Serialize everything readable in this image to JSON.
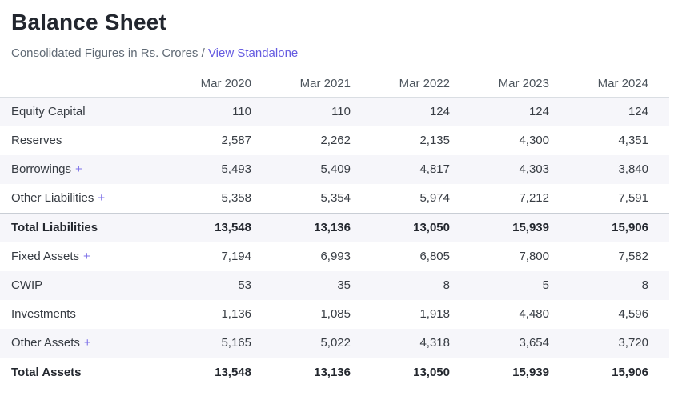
{
  "page": {
    "title": "Balance Sheet",
    "subtitle": "Consolidated Figures in Rs. Crores /",
    "standalone_link": "View Standalone"
  },
  "icons": {
    "expand": "+"
  },
  "colors": {
    "accent": "#655be1",
    "plus_icon": "#7d71e8",
    "row_stripe": "#f6f6fa",
    "header_border": "#dadee3",
    "total_border": "#c9ced5"
  },
  "table": {
    "row_label_header": "",
    "columns": [
      "Mar 2020",
      "Mar 2021",
      "Mar 2022",
      "Mar 2023",
      "Mar 2024"
    ],
    "rows": [
      {
        "label": "Equity Capital",
        "expandable": false,
        "bold": false,
        "values": [
          "110",
          "110",
          "124",
          "124",
          "124"
        ]
      },
      {
        "label": "Reserves",
        "expandable": false,
        "bold": false,
        "values": [
          "2,587",
          "2,262",
          "2,135",
          "4,300",
          "4,351"
        ]
      },
      {
        "label": "Borrowings",
        "expandable": true,
        "bold": false,
        "values": [
          "5,493",
          "5,409",
          "4,817",
          "4,303",
          "3,840"
        ]
      },
      {
        "label": "Other Liabilities",
        "expandable": true,
        "bold": false,
        "values": [
          "5,358",
          "5,354",
          "5,974",
          "7,212",
          "7,591"
        ]
      },
      {
        "label": "Total Liabilities",
        "expandable": false,
        "bold": true,
        "values": [
          "13,548",
          "13,136",
          "13,050",
          "15,939",
          "15,906"
        ]
      },
      {
        "label": "Fixed Assets",
        "expandable": true,
        "bold": false,
        "values": [
          "7,194",
          "6,993",
          "6,805",
          "7,800",
          "7,582"
        ]
      },
      {
        "label": "CWIP",
        "expandable": false,
        "bold": false,
        "values": [
          "53",
          "35",
          "8",
          "5",
          "8"
        ]
      },
      {
        "label": "Investments",
        "expandable": false,
        "bold": false,
        "values": [
          "1,136",
          "1,085",
          "1,918",
          "4,480",
          "4,596"
        ]
      },
      {
        "label": "Other Assets",
        "expandable": true,
        "bold": false,
        "values": [
          "5,165",
          "5,022",
          "4,318",
          "3,654",
          "3,720"
        ]
      },
      {
        "label": "Total Assets",
        "expandable": false,
        "bold": true,
        "values": [
          "13,548",
          "13,136",
          "13,050",
          "15,939",
          "15,906"
        ]
      }
    ]
  }
}
